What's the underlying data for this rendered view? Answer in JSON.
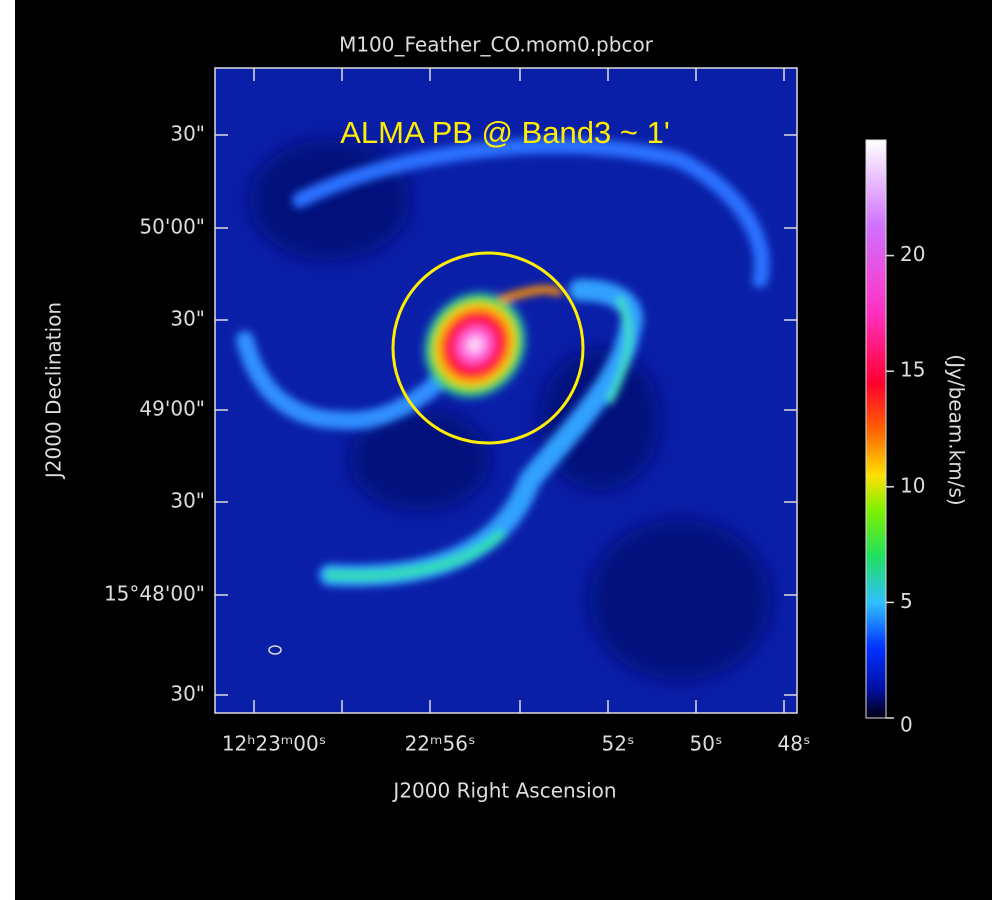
{
  "title": "M100_Feather_CO.mom0.pbcor",
  "annotation": "ALMA PB @ Band3 ~ 1'",
  "x_axis": {
    "label": "J2000 Right Ascension",
    "ticks": [
      "12ʰ23ᵐ00ˢ",
      "22ᵐ56ˢ",
      "52ˢ",
      "50ˢ",
      "48ˢ"
    ]
  },
  "y_axis": {
    "label": "J2000 Declination",
    "ticks": [
      "30\"",
      "50'00\"",
      "30\"",
      "49'00\"",
      "30\"",
      "15°48'00\"",
      "30\""
    ]
  },
  "colorbar": {
    "label": "(Jy/beam.km/s)",
    "lim": [
      0,
      25
    ],
    "ticks": [
      0,
      5,
      10,
      15,
      20
    ]
  }
}
